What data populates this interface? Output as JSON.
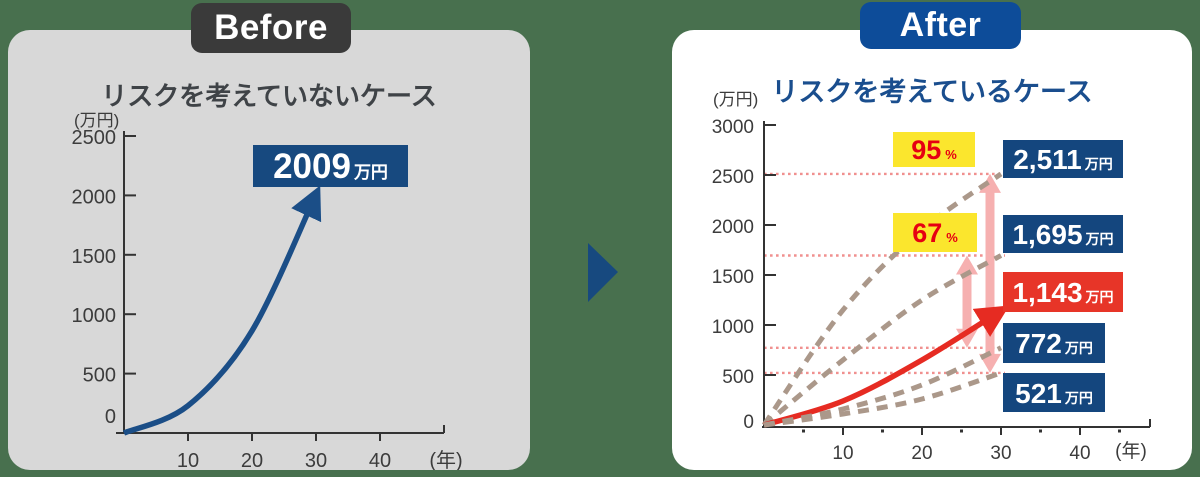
{
  "colors": {
    "background": "#48704e",
    "panel_gray": "#d8d8d8",
    "panel_white": "#ffffff",
    "badge_before": "#3a3a3a",
    "badge_after": "#0d4c99",
    "navy_box": "#14467e",
    "navy_box_before": "#17497f",
    "red_box": "#e73528",
    "yellow_label": "#fbe62d",
    "percent_text": "#e60012",
    "blue_curve": "#1b4e87",
    "red_curve": "#e62b22",
    "dashed_tan": "#ab988a",
    "pink_arrow": "#f6b0b0",
    "pink_dotted": "#f0908f",
    "axis": "#333333"
  },
  "before": {
    "badge": "Before",
    "title": "リスクを考えていないケース",
    "result": {
      "number": "2009",
      "unit": "万円",
      "color": "#17497f"
    }
  },
  "after": {
    "badge": "After",
    "title": "リスクを考えているケース",
    "percents": [
      {
        "value": "95",
        "unit": "%"
      },
      {
        "value": "67",
        "unit": "%"
      }
    ],
    "results": [
      {
        "number": "2,511",
        "unit": "万円",
        "color": "#14467e"
      },
      {
        "number": "1,695",
        "unit": "万円",
        "color": "#14467e"
      },
      {
        "number": "1,143",
        "unit": "万円",
        "color": "#e73528"
      },
      {
        "number": "772",
        "unit": "万円",
        "color": "#14467e"
      },
      {
        "number": "521",
        "unit": "万円",
        "color": "#14467e"
      }
    ]
  },
  "chart_data": [
    {
      "type": "line",
      "title": "リスクを考えていないケース",
      "xlabel": "(年)",
      "ylabel": "(万円)",
      "x": [
        0,
        10,
        20,
        30
      ],
      "series": [
        {
          "color": "#1b4e87",
          "style": "solid-arrow",
          "values": [
            0,
            230,
            860,
            2009
          ]
        }
      ],
      "x_ticks": [
        10,
        20,
        30,
        40
      ],
      "y_ticks": [
        0,
        500,
        1000,
        1500,
        2000,
        2500
      ],
      "xlim": [
        0,
        50
      ],
      "ylim": [
        0,
        2500
      ],
      "grid": false,
      "legend": false,
      "annotations": [
        {
          "text": "2009万円",
          "x": 30,
          "y": 2009
        }
      ]
    },
    {
      "type": "line",
      "title": "リスクを考えているケース",
      "xlabel": "(年)",
      "ylabel": "(万円)",
      "x": [
        0,
        10,
        20,
        30
      ],
      "series": [
        {
          "color": "#ab988a",
          "style": "dashed",
          "values": [
            0,
            1150,
            1950,
            2511
          ]
        },
        {
          "color": "#ab988a",
          "style": "dashed",
          "values": [
            0,
            650,
            1250,
            1695
          ]
        },
        {
          "color": "#e62b22",
          "style": "solid-arrow",
          "values": [
            0,
            240,
            650,
            1143
          ]
        },
        {
          "color": "#ab988a",
          "style": "dashed",
          "values": [
            0,
            160,
            400,
            772
          ]
        },
        {
          "color": "#ab988a",
          "style": "dashed",
          "values": [
            0,
            110,
            260,
            521
          ]
        }
      ],
      "x_ticks": [
        10,
        20,
        30,
        40
      ],
      "x_minor_ticks": [
        5,
        15,
        25,
        35,
        45
      ],
      "y_ticks": [
        0,
        500,
        1000,
        1500,
        2000,
        2500,
        3000
      ],
      "xlim": [
        0,
        50
      ],
      "ylim": [
        0,
        3000
      ],
      "grid": false,
      "legend": false,
      "value_lines": [
        2511,
        1695,
        772,
        521
      ],
      "bands": [
        {
          "percent": "95",
          "unit": "%",
          "range": [
            521,
            2511
          ]
        },
        {
          "percent": "67",
          "unit": "%",
          "range": [
            772,
            1695
          ]
        }
      ],
      "annotations": [
        {
          "text": "2,511万円",
          "x": 30,
          "y": 2511
        },
        {
          "text": "1,695万円",
          "x": 30,
          "y": 1695
        },
        {
          "text": "1,143万円",
          "x": 30,
          "y": 1143
        },
        {
          "text": "772万円",
          "x": 30,
          "y": 772
        },
        {
          "text": "521万円",
          "x": 30,
          "y": 521
        }
      ]
    }
  ]
}
